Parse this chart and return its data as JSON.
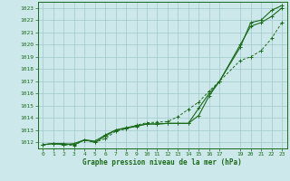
{
  "title": "Graphe pression niveau de la mer (hPa)",
  "background_color": "#cde8ea",
  "grid_color": "#a0c8cc",
  "line_color": "#1a6b1a",
  "xlim": [
    -0.5,
    23.5
  ],
  "ylim": [
    1011.5,
    1023.5
  ],
  "yticks": [
    1012,
    1013,
    1014,
    1015,
    1016,
    1017,
    1018,
    1019,
    1020,
    1021,
    1022,
    1023
  ],
  "xtick_positions": [
    0,
    1,
    2,
    3,
    4,
    5,
    6,
    7,
    8,
    9,
    10,
    11,
    12,
    13,
    14,
    15,
    16,
    17,
    19,
    20,
    21,
    22,
    23
  ],
  "xtick_labels": [
    "0",
    "1",
    "2",
    "3",
    "4",
    "5",
    "6",
    "7",
    "8",
    "9",
    "10",
    "11",
    "12",
    "13",
    "14",
    "15",
    "16",
    "17",
    "19",
    "20",
    "21",
    "22",
    "23"
  ],
  "series1_x": [
    0,
    1,
    2,
    3,
    4,
    5,
    6,
    7,
    8,
    9,
    10,
    11,
    12,
    13,
    14,
    15,
    16,
    17,
    19,
    20,
    21,
    22,
    23
  ],
  "series1_y": [
    1011.8,
    1011.9,
    1011.8,
    1011.9,
    1012.2,
    1012.1,
    1012.6,
    1013.0,
    1013.2,
    1013.35,
    1013.5,
    1013.5,
    1013.55,
    1013.55,
    1013.55,
    1014.2,
    1015.8,
    1017.0,
    1019.8,
    1021.8,
    1022.0,
    1022.8,
    1023.2
  ],
  "series2_x": [
    0,
    1,
    2,
    3,
    4,
    5,
    6,
    7,
    8,
    9,
    10,
    11,
    12,
    13,
    14,
    15,
    16,
    17,
    19,
    20,
    21,
    22,
    23
  ],
  "series2_y": [
    1011.8,
    1011.9,
    1011.9,
    1011.8,
    1012.2,
    1012.0,
    1012.5,
    1013.0,
    1013.15,
    1013.3,
    1013.5,
    1013.5,
    1013.55,
    1013.55,
    1013.55,
    1014.8,
    1016.0,
    1017.0,
    1020.0,
    1021.5,
    1021.8,
    1022.3,
    1023.0
  ],
  "series3_x": [
    0,
    1,
    2,
    3,
    4,
    5,
    6,
    7,
    8,
    9,
    10,
    11,
    12,
    13,
    14,
    15,
    16,
    17,
    19,
    20,
    21,
    22,
    23
  ],
  "series3_y": [
    1011.8,
    1011.9,
    1011.8,
    1011.75,
    1012.2,
    1012.0,
    1012.3,
    1012.9,
    1013.1,
    1013.4,
    1013.6,
    1013.65,
    1013.7,
    1014.1,
    1014.7,
    1015.3,
    1016.2,
    1017.0,
    1018.7,
    1019.0,
    1019.5,
    1020.5,
    1021.8
  ]
}
